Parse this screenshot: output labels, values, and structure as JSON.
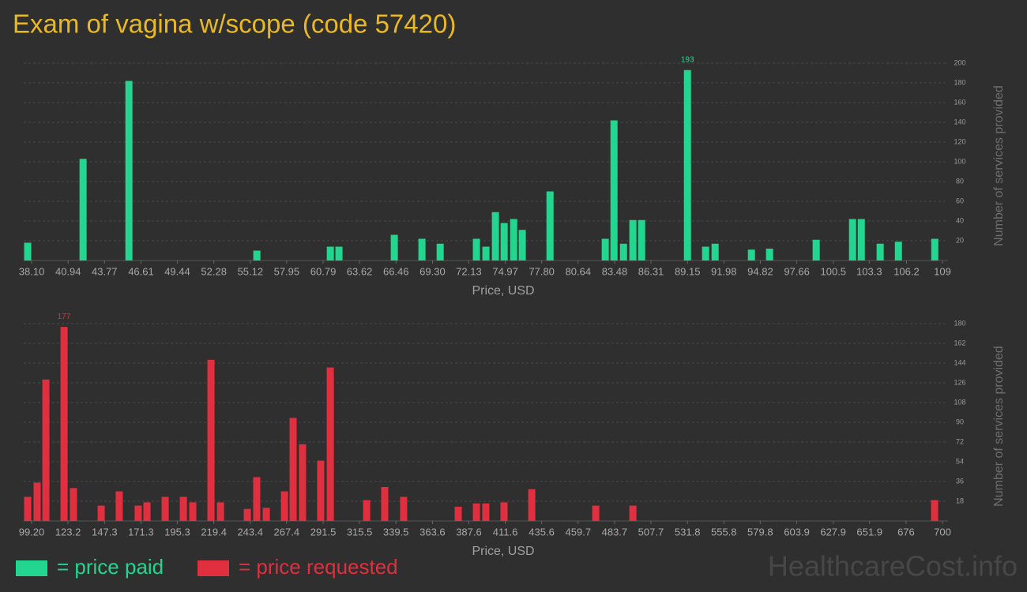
{
  "title": "Exam of vagina w/scope (code 57420)",
  "watermark": "HealthcareCost.info",
  "chart_data": [
    {
      "type": "bar",
      "xlabel": "Price, USD",
      "ylabel": "Number of services provided",
      "x": [
        37.79,
        42.1,
        45.67,
        55.63,
        61.35,
        62.02,
        66.33,
        68.48,
        69.9,
        72.72,
        73.46,
        74.2,
        74.88,
        75.62,
        76.29,
        78.45,
        82.75,
        83.43,
        84.17,
        84.9,
        85.58,
        89.15,
        90.56,
        91.3,
        94.13,
        95.54,
        99.17,
        102.0,
        102.68,
        104.15,
        105.57,
        108.4
      ],
      "series": [
        {
          "name": "= price paid",
          "color": "#22d68f",
          "values": [
            18,
            103,
            182,
            10,
            14,
            14,
            26,
            22,
            17,
            22,
            14,
            49,
            38,
            42,
            31,
            70,
            22,
            142,
            17,
            41,
            41,
            193,
            14,
            17,
            11,
            12,
            21,
            42,
            42,
            17,
            19,
            22
          ],
          "value_labels": [
            null,
            null,
            null,
            null,
            null,
            null,
            null,
            null,
            null,
            null,
            null,
            null,
            null,
            null,
            null,
            null,
            null,
            null,
            null,
            null,
            null,
            "193",
            null,
            null,
            null,
            null,
            null,
            null,
            null,
            null,
            null,
            null
          ]
        }
      ],
      "xlim": [
        37.48,
        109.43
      ],
      "xticks": [
        {
          "value": 38.1,
          "label": "38.10"
        },
        40.94,
        43.77,
        46.61,
        49.44,
        52.28,
        55.12,
        57.95,
        60.79,
        63.62,
        66.46,
        {
          "value": 69.3,
          "label": "69.30"
        },
        72.13,
        74.97,
        {
          "value": 77.8,
          "label": "77.80"
        },
        80.64,
        83.48,
        86.31,
        89.15,
        91.98,
        94.82,
        97.66,
        100.5,
        103.3,
        106.2,
        109
      ],
      "ylim": [
        0,
        200
      ],
      "yticks": [
        20,
        40,
        60,
        80,
        100,
        120,
        140,
        160,
        180,
        200
      ],
      "grid": true
    },
    {
      "type": "bar",
      "xlabel": "Price, USD",
      "ylabel": "Number of services provided",
      "x": [
        96.6,
        102.85,
        108.6,
        120.6,
        126.8,
        145.1,
        157.0,
        169.5,
        175.3,
        187.3,
        199.3,
        205.5,
        217.5,
        223.8,
        241.5,
        247.7,
        254.0,
        266.0,
        271.7,
        277.9,
        289.9,
        296.2,
        320.2,
        332.1,
        344.6,
        380.6,
        392.6,
        398.8,
        410.8,
        429.1,
        471.3,
        495.8,
        694.8
      ],
      "series": [
        {
          "name": "= price requested",
          "color": "#e0303f",
          "values": [
            22,
            35,
            129,
            177,
            30,
            14,
            27,
            14,
            17,
            22,
            22,
            17,
            147,
            17,
            11,
            40,
            12,
            27,
            94,
            70,
            55,
            140,
            19,
            31,
            22,
            13,
            16,
            16,
            17,
            29,
            14,
            14,
            19
          ],
          "value_labels": [
            null,
            null,
            null,
            "177",
            null,
            null,
            null,
            null,
            null,
            null,
            null,
            null,
            null,
            null,
            null,
            null,
            null,
            null,
            null,
            null,
            null,
            null,
            null,
            null,
            null,
            null,
            null,
            null,
            null,
            null,
            null,
            null,
            null
          ]
        }
      ],
      "xlim": [
        93.99,
        703.65
      ],
      "xticks": [
        {
          "value": 99.2,
          "label": "99.20"
        },
        123.2,
        147.3,
        171.3,
        195.3,
        219.4,
        243.4,
        267.4,
        291.5,
        315.5,
        339.5,
        363.6,
        387.6,
        411.6,
        435.6,
        459.7,
        483.7,
        507.7,
        531.8,
        555.8,
        579.8,
        603.9,
        627.9,
        651.9,
        676,
        700
      ],
      "ylim": [
        0,
        180
      ],
      "yticks": [
        18,
        36,
        54,
        72,
        90,
        108,
        126,
        144,
        162,
        180
      ],
      "grid": true
    }
  ]
}
